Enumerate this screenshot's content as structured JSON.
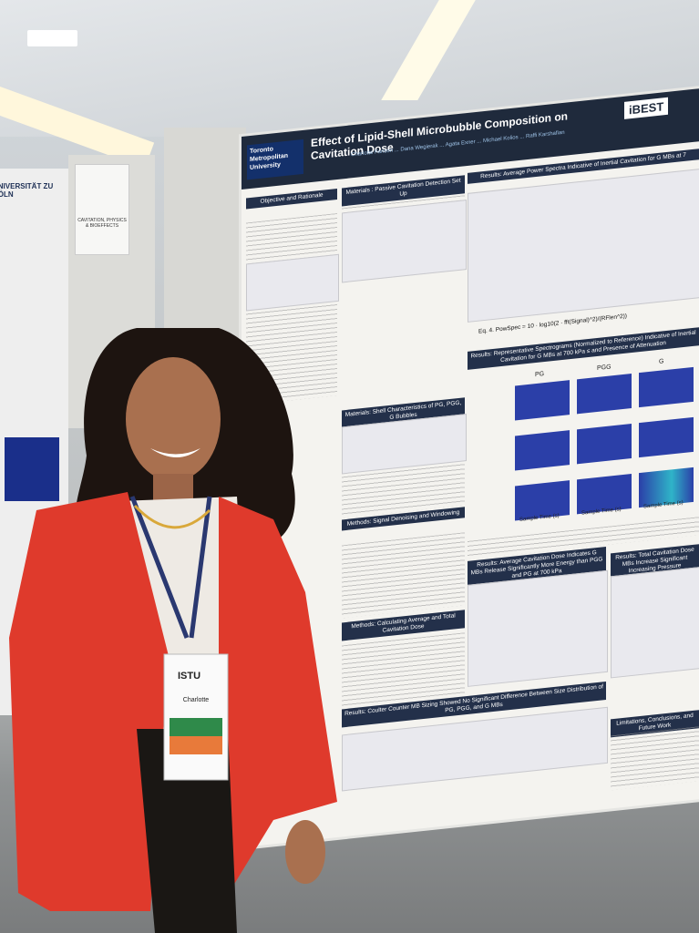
{
  "poster": {
    "title": "Effect of Lipid-Shell Microbubble Composition on Cavitation Dose",
    "institution": "Toronto Metropolitan University",
    "logo": "iBEST",
    "authors": "Charlotte Fanson ... Dana Wegierak ... Agata Exner ... Michael Kolios ... Raffi Karshafian",
    "sections": [
      "Objective and Rationale",
      "Materials : Passive Cavitation Detection Set Up",
      "Results: Average Power Spectra Indicative of Inertial Cavitation for G MBs at 7",
      "Results: Representative Spectrograms (Normalized to Reference) Indicative of Inertial Cavitation for G MBs at 700 kPa ≤ and Presence of Attenuation",
      "Materials: Shell Characteristics of PG, PGG, G Bubbles",
      "Methods: Signal Denoising and Windowing",
      "Results: Average Cavitation Dose Indicates G MBs Release Significantly More Energy than PGG and PG at 700 kPa",
      "Results: Total Cavitation Dose MBs Increase Significant Increasing Pressure",
      "Methods: Calculating Average and Total Cavitation Dose",
      "Results: Coulter Counter MB Sizing Showed No Significant Difference Between Size Distribution of PG, PGG, and G MBs",
      "Limitations, Conclusions, and Future Work"
    ],
    "equation": "Eq. 4. PowSpec = 10 · log10(2 · fft(Signal)^2)/(RFlen^2))",
    "panel_labels": [
      "PG",
      "PGG",
      "G"
    ],
    "axis_label": "Sample Time (s)"
  },
  "side_poster": {
    "university": "UNIVERSITÄT ZU KÖLN",
    "banner": "CAVITATION, PHYSICS & BIOEFFECTS"
  },
  "badge": {
    "event": "ISTU",
    "name": "Charlotte"
  }
}
